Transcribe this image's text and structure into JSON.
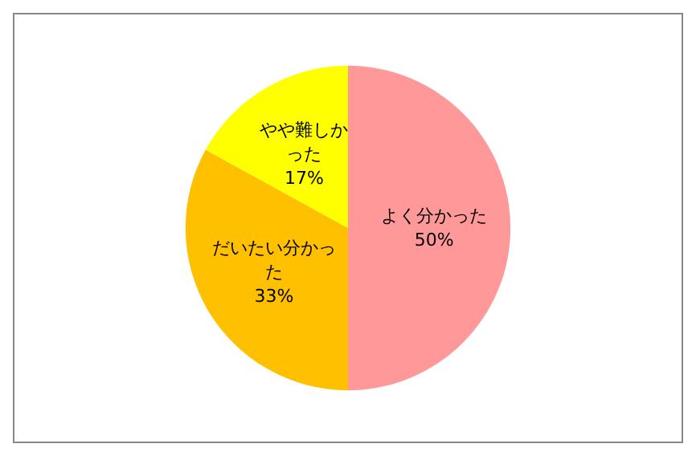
{
  "chart_data": {
    "type": "pie",
    "categories": [
      "よく分かった",
      "だいたい分かった",
      "やや難しかった"
    ],
    "values": [
      50,
      33,
      17
    ],
    "colors": [
      "#ff9999",
      "#ffc000",
      "#ffff00"
    ],
    "value_labels": [
      "50%",
      "33%",
      "17%"
    ],
    "legend": false
  }
}
